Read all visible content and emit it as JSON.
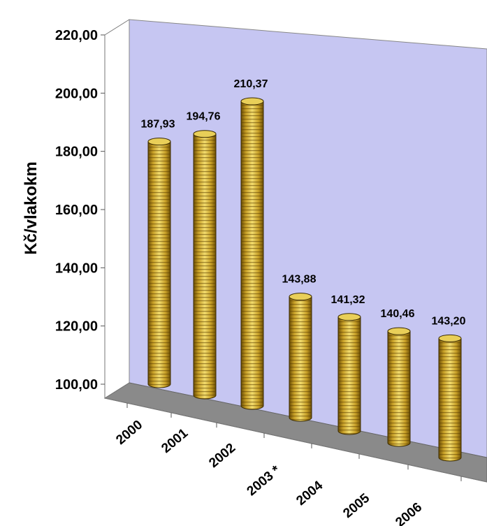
{
  "chart_data": {
    "type": "bar",
    "style": "3d-cylinder",
    "categories": [
      "2000",
      "2001",
      "2002",
      "2003 *",
      "2004",
      "2005",
      "2006"
    ],
    "values": [
      187.93,
      194.76,
      210.37,
      143.88,
      141.32,
      140.46,
      143.2
    ],
    "data_labels": [
      "187,93",
      "194,76",
      "210,37",
      "143,88",
      "141,32",
      "140,46",
      "143,20"
    ],
    "y_ticks": [
      "100,00",
      "120,00",
      "140,00",
      "160,00",
      "180,00",
      "200,00",
      "220,00"
    ],
    "ylabel": "Kč/vlakokm",
    "xlabel": "",
    "ylim": [
      100,
      220
    ],
    "grid": false,
    "colors": {
      "back_wall": "#c6c6f2",
      "floor": "#8a8a8a",
      "bar": "#d9b43a",
      "bar_dark": "#7a5a08",
      "bar_light": "#f6e27a"
    }
  }
}
